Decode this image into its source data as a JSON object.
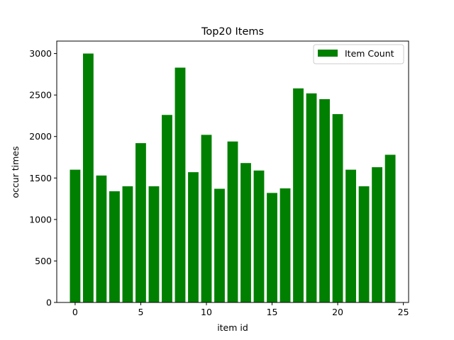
{
  "chart_data": {
    "type": "bar",
    "title": "Top20 Items",
    "xlabel": "item id",
    "ylabel": "occur times",
    "x": [
      0,
      1,
      2,
      3,
      4,
      5,
      6,
      7,
      8,
      9,
      10,
      11,
      12,
      13,
      14,
      15,
      16,
      17,
      18,
      19,
      20,
      21,
      22,
      23,
      24
    ],
    "series": [
      {
        "name": "Item Count",
        "color": "#008000",
        "values": [
          1600,
          3000,
          1530,
          1340,
          1400,
          1920,
          1400,
          2260,
          2830,
          1570,
          2020,
          1370,
          1940,
          1680,
          1590,
          1320,
          1375,
          2580,
          2520,
          2450,
          2270,
          1600,
          1400,
          1630,
          1780
        ]
      }
    ],
    "xlim": [
      -1.4,
      25.4
    ],
    "ylim": [
      0,
      3150
    ],
    "xticks": [
      0,
      5,
      10,
      15,
      20,
      25
    ],
    "yticks": [
      0,
      500,
      1000,
      1500,
      2000,
      2500,
      3000
    ],
    "grid": false,
    "legend_position": "top-right"
  }
}
